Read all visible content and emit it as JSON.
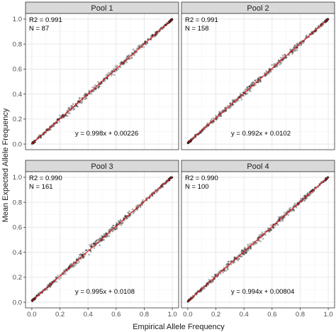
{
  "chart_data": {
    "type": "scatter",
    "layout": "facet-grid-2x2",
    "xlabel": "Empirical Allele Frequency",
    "ylabel": "Mean Expected Allele Frequency",
    "xlim": [
      0,
      1
    ],
    "ylim": [
      0,
      1
    ],
    "x_ticks": [
      "0.0",
      "0.2",
      "0.4",
      "0.6",
      "0.8",
      "1.0"
    ],
    "y_ticks": [
      "0.0",
      "0.2",
      "0.4",
      "0.6",
      "0.8",
      "1.0"
    ],
    "grid": true,
    "point_color": "#000000",
    "fit_line_color": "#e41a1c",
    "strip_fill": "#d9d9d9",
    "panels": [
      {
        "title": "Pool 1",
        "r2_label": "R2 = 0.991",
        "n_label": "N = 87",
        "equation": "y = 0.998x + 0.00226",
        "slope": 0.998,
        "intercept": 0.00226
      },
      {
        "title": "Pool 2",
        "r2_label": "R2 = 0.991",
        "n_label": "N = 158",
        "equation": "y = 0.992x + 0.0102",
        "slope": 0.992,
        "intercept": 0.0102
      },
      {
        "title": "Pool 3",
        "r2_label": "R2 = 0.990",
        "n_label": "N = 161",
        "equation": "y = 0.995x + 0.0108",
        "slope": 0.995,
        "intercept": 0.0108
      },
      {
        "title": "Pool 4",
        "r2_label": "R2 = 0.990",
        "n_label": "N = 100",
        "equation": "y = 0.994x + 0.00804",
        "slope": 0.994,
        "intercept": 0.00804
      }
    ]
  }
}
